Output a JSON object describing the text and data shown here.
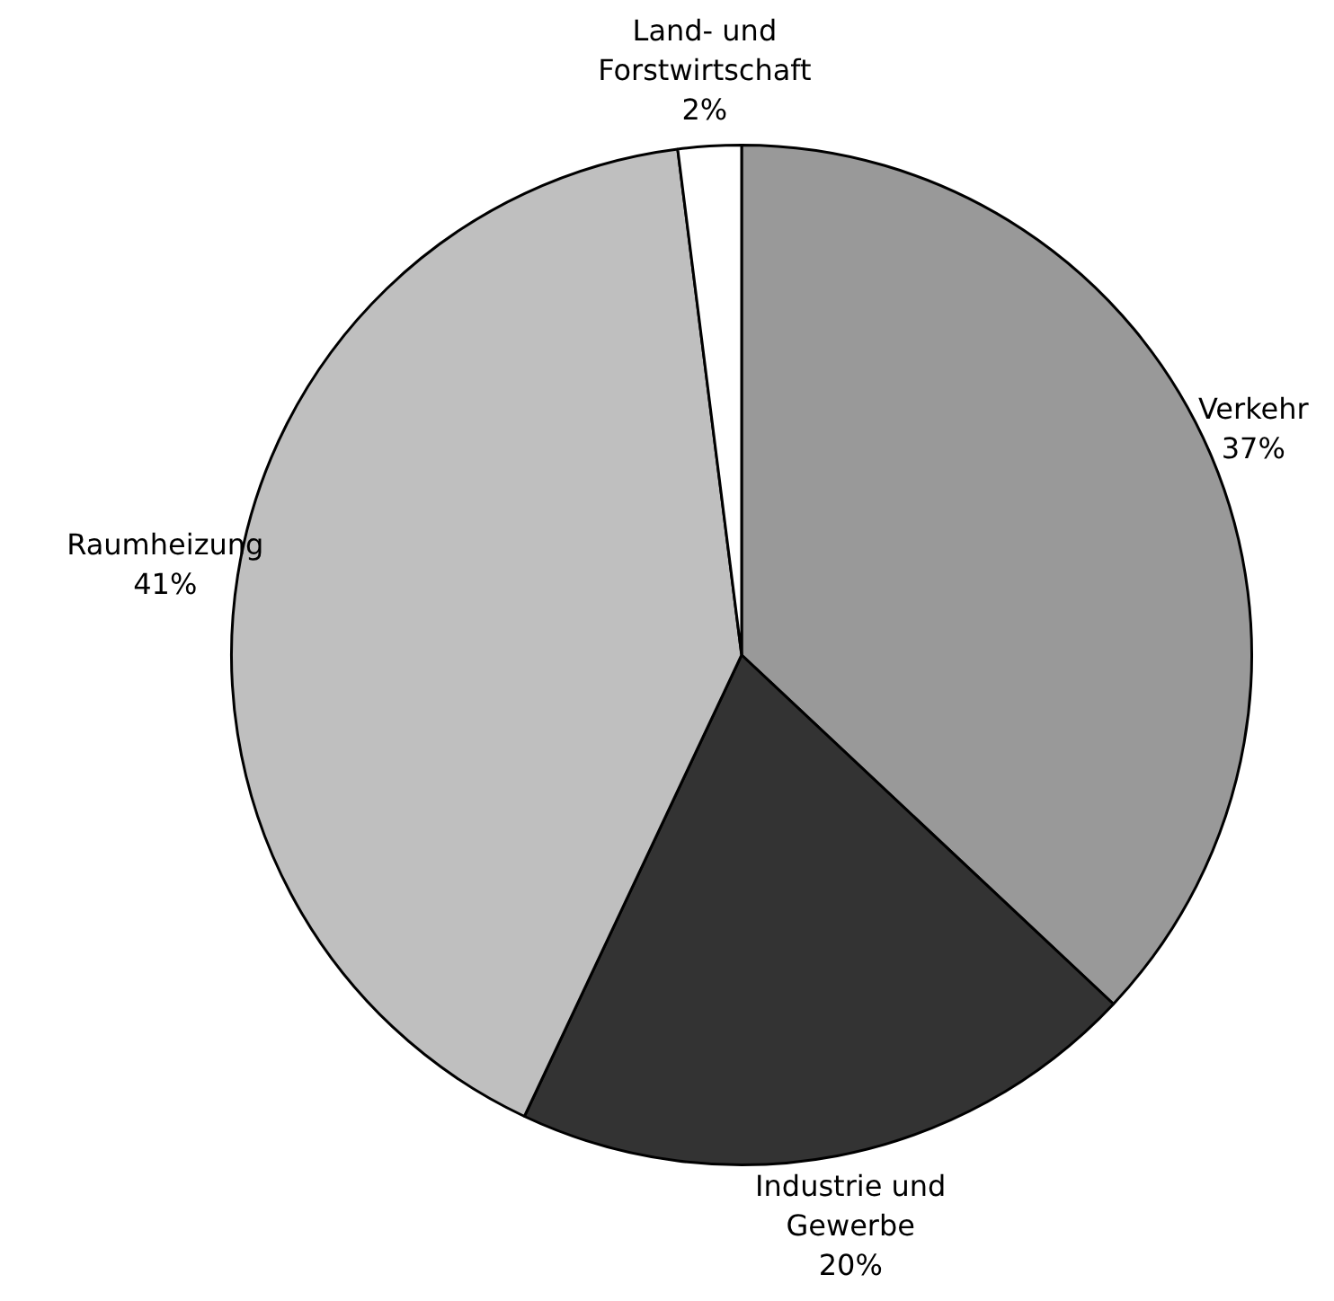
{
  "chart_data": {
    "type": "pie",
    "categories": [
      "Verkehr",
      "Industrie und Gewerbe",
      "Raumheizung",
      "Land- und Forstwirtschaft"
    ],
    "values": [
      37,
      20,
      41,
      2
    ],
    "colors": [
      "#999999",
      "#333333",
      "#bfbfbf",
      "#ffffff"
    ],
    "value_labels": [
      "37%",
      "20%",
      "41%",
      "2%"
    ],
    "legend": false
  }
}
